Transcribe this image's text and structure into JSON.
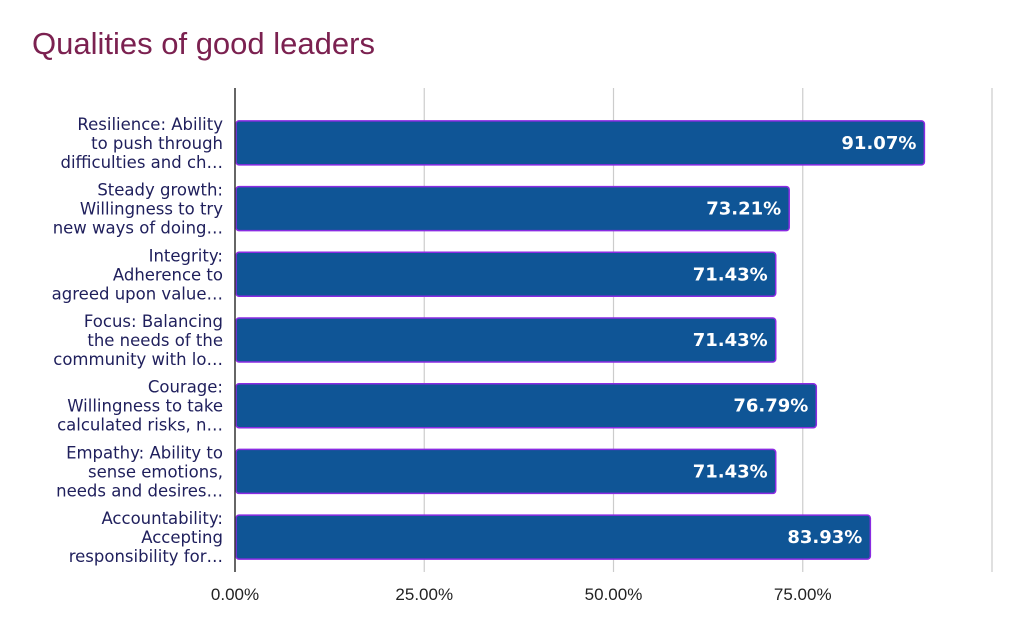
{
  "chart_data": {
    "type": "bar",
    "orientation": "horizontal",
    "title": "Qualities of good leaders",
    "xlabel": "",
    "ylabel": "",
    "categories": [
      [
        "Resilience: Ability",
        "to push through",
        "difficulties and ch…"
      ],
      [
        "Steady growth:",
        "Willingness to try",
        "new ways of doing…"
      ],
      [
        "Integrity:",
        "Adherence to",
        "agreed upon value…"
      ],
      [
        "Focus: Balancing",
        "the needs of the",
        "community with lo…"
      ],
      [
        "Courage:",
        "Willingness to take",
        "calculated risks, n…"
      ],
      [
        "Empathy: Ability to",
        "sense emotions,",
        "needs and desires…"
      ],
      [
        "Accountability:",
        "Accepting",
        "responsibility for…"
      ]
    ],
    "values": [
      91.07,
      73.21,
      71.43,
      71.43,
      76.79,
      71.43,
      83.93
    ],
    "data_labels": [
      "91.07%",
      "73.21%",
      "71.43%",
      "71.43%",
      "76.79%",
      "71.43%",
      "83.93%"
    ],
    "xlim": [
      0,
      100
    ],
    "x_ticks": [
      0,
      25,
      50,
      75
    ],
    "x_tick_labels": [
      "0.00%",
      "25.00%",
      "50.00%",
      "75.00%"
    ],
    "grid": true,
    "colors": {
      "bar_fill": "#0f5596",
      "bar_border": "#8a2be2",
      "title": "#7b2150",
      "grid": "#cccccc"
    }
  }
}
